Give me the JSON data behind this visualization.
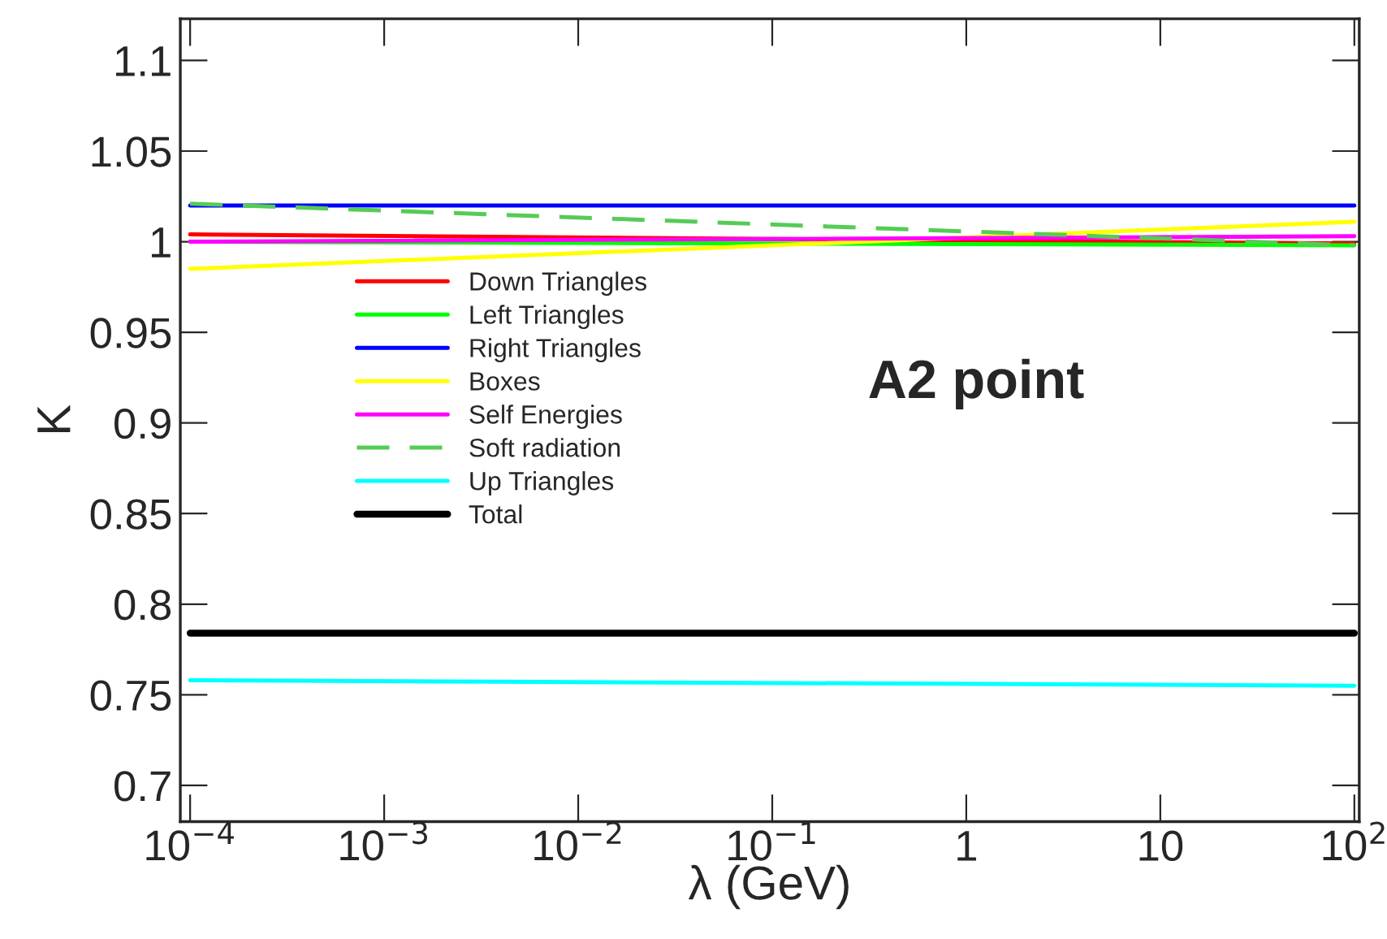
{
  "chart_data": {
    "type": "line",
    "xlabel": "λ (GeV)",
    "ylabel": "K",
    "log": "x",
    "x": [
      0.0001,
      100
    ],
    "series": [
      {
        "name": "Down Triangles",
        "color": "#ff0000",
        "values": [
          1.004,
          0.999
        ]
      },
      {
        "name": "Left Triangles",
        "color": "#00ff00",
        "values": [
          1.0,
          0.998
        ]
      },
      {
        "name": "Right Triangles",
        "color": "#0000ff",
        "values": [
          1.02,
          1.02
        ]
      },
      {
        "name": "Boxes",
        "color": "#ffff00",
        "values": [
          0.985,
          1.011
        ]
      },
      {
        "name": "Self Energies",
        "color": "#ff00ff",
        "values": [
          1.0,
          1.003
        ]
      },
      {
        "name": "Soft radiation",
        "color": "#55cc55",
        "values": [
          1.021,
          0.998
        ],
        "line_style": "dashed"
      },
      {
        "name": "Up Triangles",
        "color": "#00ffff",
        "values": [
          0.758,
          0.755
        ]
      },
      {
        "name": "Total",
        "color": "#000000",
        "values": [
          0.784,
          0.784
        ]
      }
    ],
    "xlim": [
      8.9e-05,
      106
    ],
    "xticks": [
      {
        "value": 0.0001,
        "label": "10$^{−4}$"
      },
      {
        "value": 0.001,
        "label": "10$^{−3}$"
      },
      {
        "value": 0.01,
        "label": "10$^{−2}$"
      },
      {
        "value": 0.1,
        "label": "10$^{−1}$"
      },
      1,
      10,
      {
        "value": 100,
        "label": "10$^{2}$"
      }
    ],
    "ylim": [
      0.68,
      1.123
    ],
    "yticks": [
      0.7,
      0.75,
      0.8,
      0.85,
      0.9,
      0.95,
      1,
      1.05,
      1.1
    ],
    "annotations": [
      "A2 point"
    ],
    "legend": "center left",
    "grid": false
  }
}
